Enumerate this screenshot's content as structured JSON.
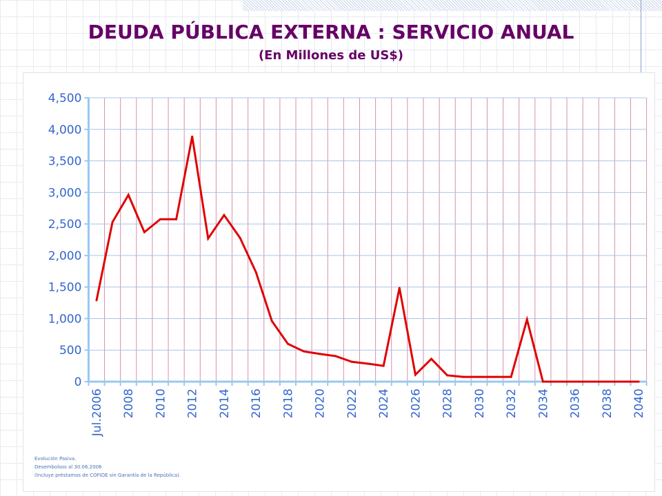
{
  "header": {
    "title": "DEUDA PÚBLICA EXTERNA : SERVICIO ANUAL",
    "subtitle": "(En Millones de US$)"
  },
  "notes": [
    "Evolución Pasiva.",
    "Desembolsos al 30.06.2006",
    "(Incluye préstamos de COFIDE sin Garantía de la República)."
  ],
  "chart_data": {
    "type": "line",
    "title": "DEUDA PÚBLICA EXTERNA : SERVICIO ANUAL",
    "subtitle": "(En Millones de US$)",
    "categories": [
      "Jul.2006",
      "2007",
      "2008",
      "2009",
      "2010",
      "2011",
      "2012",
      "2013",
      "2014",
      "2015",
      "2016",
      "2017",
      "2018",
      "2019",
      "2020",
      "2021",
      "2022",
      "2023",
      "2024",
      "2025",
      "2026",
      "2027",
      "2028",
      "2029",
      "2030",
      "2031",
      "2032",
      "2033",
      "2034",
      "2035",
      "2036",
      "2037",
      "2038",
      "2039",
      "2040"
    ],
    "tick_labels": [
      "Jul.2006",
      "2008",
      "2010",
      "2012",
      "2014",
      "2016",
      "2018",
      "2020",
      "2022",
      "2024",
      "2026",
      "2028",
      "2030",
      "2032",
      "2034",
      "2036",
      "2038",
      "2040"
    ],
    "series": [
      {
        "values": [
          1290,
          2530,
          2960,
          2370,
          2575,
          2575,
          3885,
          2270,
          2640,
          2280,
          1735,
          960,
          600,
          480,
          440,
          405,
          315,
          285,
          250,
          1485,
          110,
          360,
          100,
          75,
          75,
          75,
          75,
          985,
          0,
          0,
          0,
          0,
          0,
          0,
          0
        ]
      }
    ],
    "ylim": [
      0,
      4500
    ],
    "yticks": [
      0,
      500,
      1000,
      1500,
      2000,
      2500,
      3000,
      3500,
      4000,
      4500
    ],
    "ytick_labels": [
      "0",
      "500",
      "1,000",
      "1,500",
      "2,000",
      "2,500",
      "3,000",
      "3,500",
      "4,000",
      "4,500"
    ],
    "grid": true,
    "colors": {
      "line": "#e00000",
      "axis": "#99c8f0",
      "hgrid": "#a9c4e6",
      "vgrid": "#d98cb3",
      "ticklabel": "#3366cc",
      "title": "#660066"
    }
  }
}
